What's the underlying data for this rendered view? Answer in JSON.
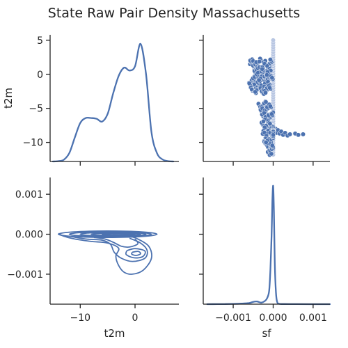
{
  "chart_data": {
    "type": "pairgrid",
    "title": "State Raw Pair Density Massachusetts",
    "variables": [
      "t2m",
      "sf"
    ],
    "color": "#4c72b0",
    "panels": {
      "t2m_t2m": {
        "type": "kde",
        "x": [
          -15,
          -14,
          -13,
          -12,
          -11,
          -10,
          -9,
          -8,
          -7,
          -6,
          -5,
          -4,
          -3,
          -2,
          -1,
          0,
          1,
          2,
          3,
          4,
          5,
          6,
          7
        ],
        "density": [
          0.0,
          0.005,
          0.025,
          0.12,
          0.34,
          0.55,
          0.62,
          0.62,
          0.61,
          0.57,
          0.68,
          0.97,
          1.22,
          1.34,
          1.3,
          1.36,
          1.68,
          1.25,
          0.42,
          0.12,
          0.03,
          0.005,
          0.0
        ]
      },
      "sf_t2m": {
        "type": "scatter",
        "xlim": [
          -0.00075,
          0.00085
        ],
        "ylim": [
          -12.8,
          5.8
        ],
        "points": [
          [
            -0.00055,
            1.8
          ],
          [
            -0.0005,
            2.0
          ],
          [
            -0.00048,
            1.2
          ],
          [
            -0.00045,
            0.5
          ],
          [
            -0.00043,
            1.5
          ],
          [
            -0.0004,
            0.8
          ],
          [
            -0.00038,
            -0.2
          ],
          [
            -0.00035,
            1.0
          ],
          [
            -0.00032,
            2.1
          ],
          [
            -0.0003,
            0.2
          ],
          [
            -0.00028,
            -0.6
          ],
          [
            -0.00025,
            0.9
          ],
          [
            -0.00022,
            1.7
          ],
          [
            -0.0002,
            -0.3
          ],
          [
            -0.00018,
            0.4
          ],
          [
            -0.00015,
            -0.9
          ],
          [
            -0.00012,
            1.3
          ],
          [
            -0.0001,
            -0.1
          ],
          [
            -8e-05,
            0.6
          ],
          [
            -5e-05,
            1.9
          ],
          [
            -3e-05,
            -0.5
          ],
          [
            -0.00052,
            -1.0
          ],
          [
            -0.00046,
            -1.5
          ],
          [
            -0.00041,
            -2.0
          ],
          [
            -0.00036,
            -1.2
          ],
          [
            -0.00031,
            -1.8
          ],
          [
            -0.00026,
            -2.4
          ],
          [
            -0.0002,
            -1.6
          ],
          [
            -0.00016,
            -2.2
          ],
          [
            -0.00011,
            -1.4
          ],
          [
            -0.00058,
            -1.5
          ],
          [
            -0.00054,
            -2.1
          ],
          [
            -0.00049,
            -0.6
          ],
          [
            -0.00044,
            -2.5
          ],
          [
            -0.00039,
            0.0
          ],
          [
            -0.00033,
            -0.8
          ],
          [
            -0.00027,
            0.5
          ],
          [
            -0.00021,
            -2.7
          ],
          [
            -0.00014,
            0.2
          ],
          [
            -9e-05,
            -2.0
          ],
          [
            -0.00035,
            -4.5
          ],
          [
            -0.0003,
            -5.3
          ],
          [
            -0.00028,
            -4.8
          ],
          [
            -0.00025,
            -6.0
          ],
          [
            -0.00022,
            -5.5
          ],
          [
            -0.0002,
            -4.2
          ],
          [
            -0.00018,
            -6.5
          ],
          [
            -0.00015,
            -5.0
          ],
          [
            -0.00012,
            -7.0
          ],
          [
            -0.0001,
            -6.2
          ],
          [
            -8e-05,
            -4.6
          ],
          [
            -5e-05,
            -7.5
          ],
          [
            -3e-05,
            -5.8
          ],
          [
            -0.00026,
            -7.2
          ],
          [
            -0.00019,
            -7.8
          ],
          [
            -0.00013,
            -8.4
          ],
          [
            -0.00024,
            -8.6
          ],
          [
            -0.00017,
            -9.2
          ],
          [
            -0.0001,
            -9.6
          ],
          [
            -6e-05,
            -8.8
          ],
          [
            -0.00021,
            -10.0
          ],
          [
            -0.00014,
            -10.5
          ],
          [
            -8e-05,
            -10.2
          ],
          [
            -4e-05,
            -11.0
          ],
          [
            -0.00011,
            -11.4
          ],
          [
            -0.00016,
            -9.9
          ],
          [
            -2e-05,
            -9.4
          ],
          [
            -7e-05,
            -11.6
          ],
          [
            -1e-05,
            -10.7
          ],
          [
            -3e-05,
            -8.1
          ],
          [
            3e-05,
            -8.3
          ],
          [
            6e-05,
            -8.0
          ],
          [
            9e-05,
            -8.6
          ],
          [
            0.00012,
            -8.2
          ],
          [
            0.00016,
            -8.7
          ],
          [
            0.0002,
            -8.4
          ],
          [
            0.00025,
            -8.9
          ],
          [
            0.0003,
            -8.6
          ],
          [
            0.00036,
            -9.0
          ],
          [
            0.00042,
            -8.8
          ],
          [
            0.00055,
            -8.7
          ],
          [
            0.00063,
            -8.9
          ],
          [
            0.00075,
            -8.8
          ]
        ],
        "column": {
          "x": 0.0,
          "ymin": -11.8,
          "ymax": 5.3
        }
      },
      "t2m_sf": {
        "type": "kde2d",
        "xlim": [
          -15.5,
          8.0
        ],
        "ylim": [
          -0.00175,
          0.00142
        ],
        "contours": [
          {
            "cx": -5.0,
            "cy": 0.0,
            "rx": 9.0,
            "ry": 8e-05
          },
          {
            "cx": -4.5,
            "cy": 0.0,
            "rx": 7.5,
            "ry": 6e-05
          },
          {
            "cx": -4.0,
            "cy": 0.0,
            "rx": 6.0,
            "ry": 4.5e-05
          },
          {
            "cx": -3.5,
            "cy": 0.0,
            "rx": 4.5,
            "ry": 3e-05
          },
          {
            "cx": -3.0,
            "cy": 0.0,
            "rx": 3.0,
            "ry": 1.8e-05
          },
          {
            "cx": -2.5,
            "cy": -2e-05,
            "rx": 1.8,
            "ry": 1e-05
          }
        ],
        "paths": [
          [
            [
              -14.0,
              2e-05
            ],
            [
              -13.0,
              -5e-05
            ],
            [
              -11.0,
              -0.00012
            ],
            [
              -8.0,
              -0.00018
            ],
            [
              -5.0,
              -0.00022
            ],
            [
              -3.0,
              -0.00035
            ],
            [
              -3.5,
              -0.00055
            ],
            [
              -3.0,
              -0.00078
            ],
            [
              -2.0,
              -0.00095
            ],
            [
              -0.5,
              -0.001
            ],
            [
              1.5,
              -0.0009
            ],
            [
              3.0,
              -0.0006
            ],
            [
              2.5,
              -0.0003
            ],
            [
              0.5,
              -0.00012
            ],
            [
              -1.0,
              -5e-05
            ]
          ],
          [
            [
              -12.0,
              -5e-05
            ],
            [
              -9.0,
              -0.00012
            ],
            [
              -6.0,
              -0.00015
            ],
            [
              -4.5,
              -0.00025
            ],
            [
              -3.8,
              -0.00045
            ],
            [
              -2.5,
              -0.0006
            ],
            [
              -0.5,
              -0.00068
            ],
            [
              1.8,
              -0.0006
            ],
            [
              2.2,
              -0.0004
            ],
            [
              1.0,
              -0.00022
            ],
            [
              -1.0,
              -0.0001
            ]
          ],
          [
            [
              -7.5,
              -8e-05
            ],
            [
              -5.5,
              -0.00012
            ],
            [
              -4.0,
              -0.0002
            ],
            [
              -2.5,
              -0.0003
            ],
            [
              -1.0,
              -0.00032
            ],
            [
              0.5,
              -0.00024
            ],
            [
              0.0,
              -0.00012
            ]
          ],
          [
            [
              -1.5,
              -0.00041
            ],
            [
              0.0,
              -0.00036
            ],
            [
              1.8,
              -0.00042
            ],
            [
              1.4,
              -0.00056
            ],
            [
              -0.2,
              -0.00059
            ],
            [
              -1.6,
              -0.00051
            ],
            [
              -1.5,
              -0.00041
            ]
          ],
          [
            [
              -0.5,
              -0.00045
            ],
            [
              0.6,
              -0.00043
            ],
            [
              1.0,
              -0.00049
            ],
            [
              0.2,
              -0.00053
            ],
            [
              -0.6,
              -0.0005
            ],
            [
              -0.5,
              -0.00045
            ]
          ]
        ]
      },
      "sf_sf": {
        "type": "kde",
        "x": [
          -0.00165,
          -0.0014,
          -0.0012,
          -0.001,
          -0.0008,
          -0.0006,
          -0.0005,
          -0.0004,
          -0.0003,
          -0.0002,
          -0.00015,
          -0.0001,
          -7e-05,
          -4e-05,
          -2e-05,
          0.0,
          2e-05,
          4e-05,
          7e-05,
          0.0001,
          0.00015,
          0.0003,
          0.0006,
          0.001,
          0.00142
        ],
        "density": [
          0.0,
          0.002,
          0.004,
          0.008,
          0.015,
          0.03,
          0.06,
          0.07,
          0.04,
          0.09,
          0.16,
          0.35,
          0.9,
          1.8,
          2.7,
          3.1,
          2.4,
          1.1,
          0.3,
          0.06,
          0.01,
          0.003,
          0.001,
          0.0,
          0.0
        ]
      }
    },
    "axes": {
      "t2m": {
        "label": "t2m",
        "ticks": [
          -10,
          0
        ],
        "tick_labels": [
          "−10",
          "0"
        ],
        "range": [
          -15.5,
          8.0
        ]
      },
      "sf_x": {
        "label": "sf",
        "ticks": [
          -0.001,
          0.0,
          0.001
        ],
        "tick_labels": [
          "−0.001",
          "0.000",
          "0.001"
        ],
        "range": [
          -0.00175,
          0.00142
        ]
      },
      "t2m_y": {
        "label": "t2m",
        "ticks": [
          5,
          0,
          -5,
          -10
        ],
        "tick_labels": [
          "5",
          "0",
          "−5",
          "−10"
        ],
        "range": [
          -12.8,
          5.8
        ]
      },
      "sf_y": {
        "label": "",
        "ticks": [
          0.001,
          0.0,
          -0.001
        ],
        "tick_labels": [
          "0.001",
          "0.000",
          "−0.001"
        ],
        "range": [
          -0.00175,
          0.00142
        ]
      }
    },
    "grid": false,
    "legend": "none"
  }
}
